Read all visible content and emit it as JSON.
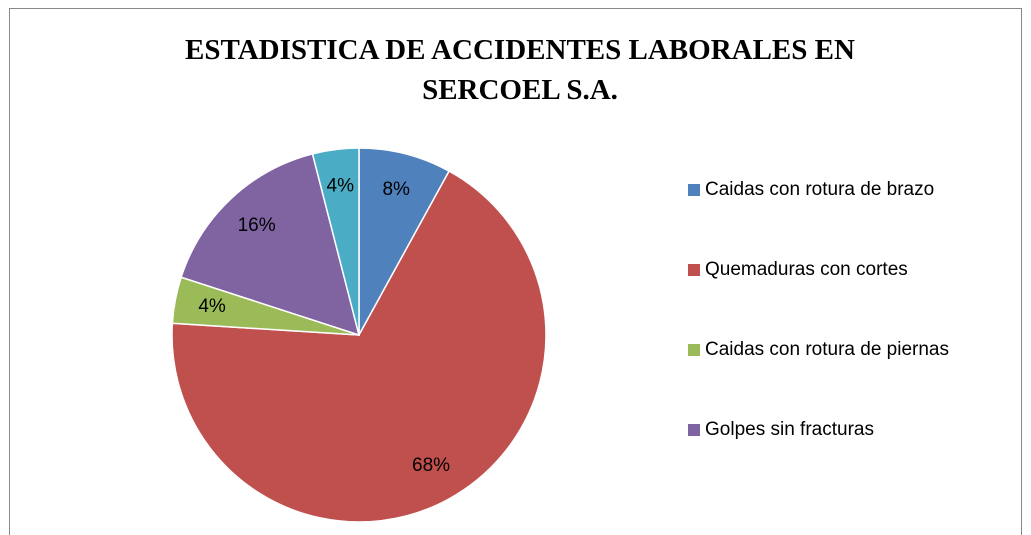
{
  "chart_data": {
    "type": "pie",
    "title": "ESTADISTICA DE ACCIDENTES LABORALES EN SERCOEL S.A.",
    "categories": [
      "Caidas con rotura de brazo",
      "Quemaduras con cortes",
      "Caidas con rotura de piernas",
      "Golpes sin fracturas",
      null
    ],
    "values": [
      8,
      68,
      4,
      16,
      4
    ],
    "value_labels": [
      "8%",
      "68%",
      "4%",
      "16%",
      "4%"
    ],
    "colors": [
      "#4f81bd",
      "#c0504d",
      "#9bbb59",
      "#8064a2",
      "#4bacc6"
    ],
    "legend": "right"
  }
}
